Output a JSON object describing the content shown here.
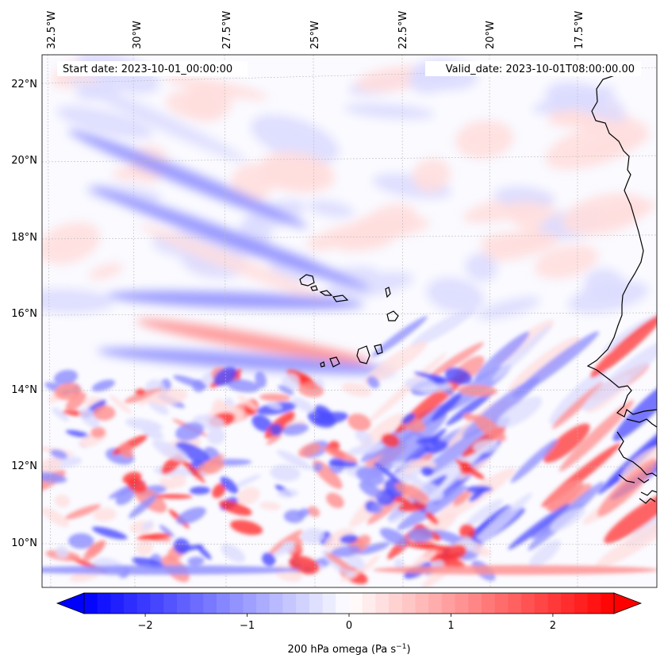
{
  "map": {
    "header": {
      "start_date": "Start date: 2023-10-01_00:00:00",
      "valid_date": "Valid_date: 2023-10-01T08:00:00.00"
    },
    "lon_labels": [
      "32.5°W",
      "30°W",
      "27.5°W",
      "25°W",
      "22.5°W",
      "20°W",
      "17.5°W"
    ],
    "lat_labels": [
      "22°N",
      "20°N",
      "18°N",
      "16°N",
      "14°N",
      "12°N",
      "10°N"
    ],
    "colorbar": {
      "label_prefix": "200 hPa omega (Pa s",
      "label_exp": "−1",
      "label_suffix": ")",
      "ticks": [
        "−2",
        "−1",
        "0",
        "1",
        "2"
      ],
      "tick_values": [
        -2,
        -1,
        0,
        1,
        2
      ],
      "range": [
        -2.6,
        2.6
      ],
      "cmap": "bwr",
      "extend": "both",
      "colors": {
        "negative": "#0000ff",
        "neutral": "#ffffff",
        "positive": "#ff0000"
      }
    },
    "field_colors": {
      "strong_up": "#4b4bff",
      "mid_up": "#8c8cff",
      "weak_up": "#dcdcff",
      "strong_down": "#ff3030",
      "mid_down": "#ff8c8c",
      "weak_down": "#ffdede"
    },
    "coastline_color": "#000000",
    "gridline_color": "#bbbbbb"
  }
}
